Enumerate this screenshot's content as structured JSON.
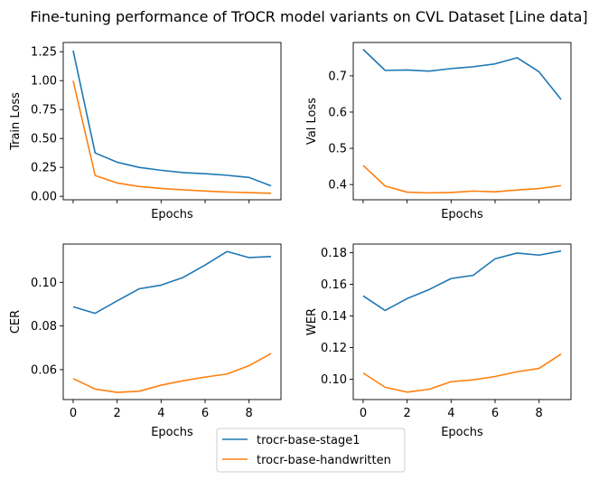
{
  "suptitle": "Fine-tuning performance of TrOCR model variants on CVL Dataset [Line data]",
  "colors": {
    "stage1": "#1f77b4",
    "handwritten": "#ff7f0e"
  },
  "legend": {
    "placement": "bottom-center",
    "entries": [
      "trocr-base-stage1",
      "trocr-base-handwritten"
    ]
  },
  "chart_data": [
    {
      "type": "line",
      "title": "",
      "xlabel": "Epochs",
      "ylabel": "Train Loss",
      "x": [
        0,
        1,
        2,
        3,
        4,
        5,
        6,
        7,
        8,
        9
      ],
      "xlim": [
        -0.45,
        9.45
      ],
      "ylim": [
        -0.03,
        1.33
      ],
      "yticks": [
        0.0,
        0.25,
        0.5,
        0.75,
        1.0,
        1.25
      ],
      "ytick_labels": [
        "0.00",
        "0.25",
        "0.50",
        "0.75",
        "1.00",
        "1.25"
      ],
      "xticks": [
        0,
        2,
        4,
        6,
        8
      ],
      "xtick_labels": [
        "",
        "",
        "",
        "",
        ""
      ],
      "grid": false,
      "series": [
        {
          "name": "trocr-base-stage1",
          "values": [
            1.26,
            0.375,
            0.295,
            0.25,
            0.225,
            0.205,
            0.195,
            0.182,
            0.163,
            0.09
          ]
        },
        {
          "name": "trocr-base-handwritten",
          "values": [
            1.0,
            0.18,
            0.115,
            0.085,
            0.068,
            0.056,
            0.046,
            0.037,
            0.032,
            0.026
          ]
        }
      ]
    },
    {
      "type": "line",
      "title": "",
      "xlabel": "Epochs",
      "ylabel": "Val Loss",
      "x": [
        0,
        1,
        2,
        3,
        4,
        5,
        6,
        7,
        8,
        9
      ],
      "xlim": [
        -0.45,
        9.45
      ],
      "ylim": [
        0.358,
        0.792
      ],
      "yticks": [
        0.4,
        0.5,
        0.6,
        0.7
      ],
      "ytick_labels": [
        "0.4",
        "0.5",
        "0.6",
        "0.7"
      ],
      "xticks": [
        0,
        2,
        4,
        6,
        8
      ],
      "xtick_labels": [
        "",
        "",
        "",
        "",
        ""
      ],
      "grid": false,
      "series": [
        {
          "name": "trocr-base-stage1",
          "values": [
            0.773,
            0.715,
            0.716,
            0.713,
            0.72,
            0.725,
            0.733,
            0.75,
            0.711,
            0.635
          ]
        },
        {
          "name": "trocr-base-handwritten",
          "values": [
            0.453,
            0.396,
            0.379,
            0.377,
            0.378,
            0.382,
            0.38,
            0.385,
            0.389,
            0.397
          ]
        }
      ]
    },
    {
      "type": "line",
      "title": "",
      "xlabel": "Epochs",
      "ylabel": "CER",
      "x": [
        0,
        1,
        2,
        3,
        4,
        5,
        6,
        7,
        8,
        9
      ],
      "xlim": [
        -0.45,
        9.45
      ],
      "ylim": [
        0.0463,
        0.1175
      ],
      "yticks": [
        0.06,
        0.08,
        0.1
      ],
      "ytick_labels": [
        "0.06",
        "0.08",
        "0.10"
      ],
      "xticks": [
        0,
        2,
        4,
        6,
        8
      ],
      "xtick_labels": [
        "0",
        "2",
        "4",
        "6",
        "8"
      ],
      "grid": false,
      "series": [
        {
          "name": "trocr-base-stage1",
          "values": [
            0.0888,
            0.0858,
            0.0915,
            0.097,
            0.0987,
            0.1022,
            0.1079,
            0.1141,
            0.1113,
            0.1118
          ]
        },
        {
          "name": "trocr-base-handwritten",
          "values": [
            0.0559,
            0.0511,
            0.0496,
            0.0501,
            0.0529,
            0.0549,
            0.0566,
            0.058,
            0.0618,
            0.0674
          ]
        }
      ]
    },
    {
      "type": "line",
      "title": "",
      "xlabel": "Epochs",
      "ylabel": "WER",
      "x": [
        0,
        1,
        2,
        3,
        4,
        5,
        6,
        7,
        8,
        9
      ],
      "xlim": [
        -0.45,
        9.45
      ],
      "ylim": [
        0.0871,
        0.1855
      ],
      "yticks": [
        0.1,
        0.12,
        0.14,
        0.16,
        0.18
      ],
      "ytick_labels": [
        "0.10",
        "0.12",
        "0.14",
        "0.16",
        "0.18"
      ],
      "xticks": [
        0,
        2,
        4,
        6,
        8
      ],
      "xtick_labels": [
        "0",
        "2",
        "4",
        "6",
        "8"
      ],
      "grid": false,
      "series": [
        {
          "name": "trocr-base-stage1",
          "values": [
            0.1527,
            0.1435,
            0.151,
            0.1567,
            0.1637,
            0.1657,
            0.1762,
            0.1798,
            0.1785,
            0.1811
          ]
        },
        {
          "name": "trocr-base-handwritten",
          "values": [
            0.1039,
            0.0949,
            0.0918,
            0.0936,
            0.0984,
            0.0996,
            0.1017,
            0.1047,
            0.1068,
            0.1159
          ]
        }
      ]
    }
  ]
}
